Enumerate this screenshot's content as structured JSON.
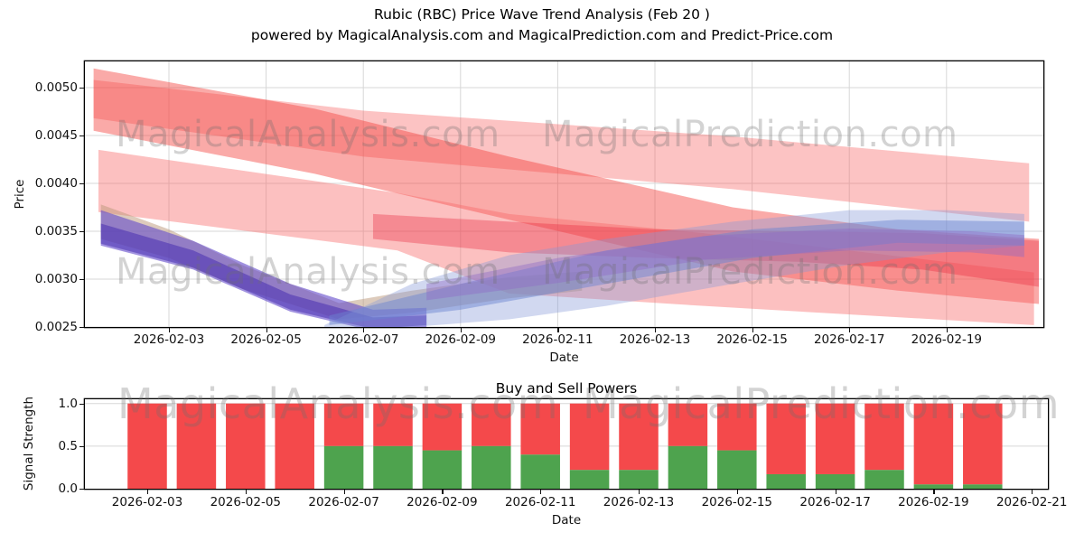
{
  "watermarks": {
    "analysis": "MagicalAnalysis.com",
    "prediction": "MagicalPrediction.com"
  },
  "chart_data": [
    {
      "type": "area",
      "title": "Rubic (RBC) Price Wave Trend Analysis (Feb 20 )",
      "subtitle": "powered by MagicalAnalysis.com and MagicalPrediction.com and Predict-Price.com",
      "xlabel": "Date",
      "ylabel": "Price",
      "x_unit": "day of February 2026",
      "xlim": [
        1.27,
        21.0
      ],
      "ylim": [
        0.0025,
        0.00527
      ],
      "grid": true,
      "legend": false,
      "xticks": {
        "values": [
          3,
          5,
          7,
          9,
          11,
          13,
          15,
          17,
          19
        ],
        "labels": [
          "2026-02-03",
          "2026-02-05",
          "2026-02-07",
          "2026-02-09",
          "2026-02-11",
          "2026-02-13",
          "2026-02-15",
          "2026-02-17",
          "2026-02-19"
        ]
      },
      "yticks": {
        "values": [
          0.0025,
          0.003,
          0.0035,
          0.004,
          0.0045,
          0.005
        ],
        "labels": [
          "0.0025",
          "0.0030",
          "0.0035",
          "0.0040",
          "0.0045",
          "0.0050"
        ]
      },
      "bands": [
        {
          "name": "forecast-band-pink-upper",
          "color": "rgba(246,97,97,0.38)",
          "x": [
            1.45,
            7.0,
            14.6,
            20.7
          ],
          "top": [
            0.00508,
            0.00476,
            0.00449,
            0.00421
          ],
          "bottom": [
            0.00468,
            0.00428,
            0.00394,
            0.0036
          ]
        },
        {
          "name": "forecast-band-red-steep",
          "color": "rgba(243,66,63,0.45)",
          "x": [
            1.45,
            6.0,
            10.0,
            14.6,
            18.0,
            20.9
          ],
          "top": [
            0.0052,
            0.00478,
            0.00428,
            0.00375,
            0.00352,
            0.00342
          ],
          "bottom": [
            0.00455,
            0.0041,
            0.00362,
            0.00308,
            0.00288,
            0.00274
          ]
        },
        {
          "name": "forecast-band-pink-lower",
          "color": "rgba(247,105,105,0.42)",
          "x": [
            1.55,
            7.7,
            10.0,
            14.0,
            20.8
          ],
          "top": [
            0.00435,
            0.0039,
            0.00368,
            0.00348,
            0.00307
          ],
          "bottom": [
            0.0037,
            0.0033,
            0.00285,
            0.00272,
            0.00252
          ]
        },
        {
          "name": "wave-band-tan",
          "color": "rgba(187,152,122,0.50)",
          "x": [
            1.6,
            3.0,
            4.5,
            6.5,
            8.0,
            10.0,
            11.5
          ],
          "top": [
            0.00378,
            0.00352,
            0.00315,
            0.00275,
            0.00288,
            0.00302,
            0.00308
          ],
          "bottom": [
            0.00342,
            0.00322,
            0.0029,
            0.00258,
            0.00265,
            0.0028,
            0.00288
          ]
        },
        {
          "name": "wave-band-purple",
          "color": "rgba(101,77,204,0.62)",
          "x": [
            1.6,
            3.5,
            5.5,
            7.2,
            8.3
          ],
          "top": [
            0.00372,
            0.0034,
            0.00295,
            0.00268,
            0.0027
          ],
          "bottom": [
            0.00335,
            0.0031,
            0.00266,
            0.00246,
            0.0025
          ]
        },
        {
          "name": "wave-band-purple-core",
          "color": "rgba(72,48,176,0.55)",
          "x": [
            1.6,
            3.5,
            5.5,
            7.2,
            8.3
          ],
          "top": [
            0.00358,
            0.0033,
            0.00284,
            0.0026,
            0.00262
          ],
          "bottom": [
            0.00337,
            0.00312,
            0.00268,
            0.00248,
            0.00252
          ]
        },
        {
          "name": "wave-band-red-core",
          "color": "rgba(232,38,60,0.35)",
          "x": [
            7.2,
            10.0,
            13.0,
            16.0,
            18.5,
            20.9
          ],
          "top": [
            0.00368,
            0.0036,
            0.00352,
            0.0035,
            0.00348,
            0.0034
          ],
          "bottom": [
            0.00342,
            0.00328,
            0.00322,
            0.00318,
            0.0031,
            0.00292
          ]
        },
        {
          "name": "wave-band-blue-fan",
          "color": "rgba(133,153,216,0.38)",
          "x": [
            6.2,
            8.0,
            10.0,
            12.0,
            14.6,
            17.0,
            19.0,
            20.6
          ],
          "top": [
            0.00252,
            0.00295,
            0.00325,
            0.00342,
            0.0036,
            0.00372,
            0.00372,
            0.00368
          ],
          "bottom": [
            0.0025,
            0.0025,
            0.00258,
            0.00272,
            0.00295,
            0.00315,
            0.00328,
            0.00335
          ]
        },
        {
          "name": "wave-band-blue-core",
          "color": "rgba(106,131,208,0.48)",
          "x": [
            6.3,
            9.0,
            12.0,
            15.0,
            18.0,
            20.6
          ],
          "top": [
            0.00262,
            0.00295,
            0.0033,
            0.00352,
            0.00362,
            0.0036
          ],
          "bottom": [
            0.00252,
            0.00268,
            0.00295,
            0.00322,
            0.00338,
            0.00335
          ]
        },
        {
          "name": "wave-band-violet-mid",
          "color": "rgba(142,104,198,0.42)",
          "x": [
            8.3,
            11.0,
            14.0,
            17.0,
            19.5,
            20.6
          ],
          "top": [
            0.00295,
            0.00322,
            0.00345,
            0.00353,
            0.0035,
            0.00346
          ],
          "bottom": [
            0.00278,
            0.00296,
            0.0032,
            0.0033,
            0.00328,
            0.00323
          ]
        }
      ]
    },
    {
      "type": "bar",
      "title": "Buy and Sell Powers",
      "xlabel": "Date",
      "ylabel": "Signal Strength",
      "stacked": true,
      "bar_total": 1.0,
      "bar_width_days": 0.8,
      "xlim": [
        1.71,
        21.64
      ],
      "ylim": [
        0,
        1.05
      ],
      "grid": "horizontal",
      "xticks": {
        "values": [
          3,
          5,
          7,
          9,
          11,
          13,
          15,
          17,
          19,
          21
        ],
        "labels": [
          "2026-02-03",
          "2026-02-05",
          "2026-02-07",
          "2026-02-09",
          "2026-02-11",
          "2026-02-13",
          "2026-02-15",
          "2026-02-17",
          "2026-02-19",
          "2026-02-21"
        ]
      },
      "yticks": {
        "values": [
          0,
          0.5,
          1.0
        ],
        "labels": [
          "0.0",
          "0.5",
          "1.0"
        ]
      },
      "categories": [
        "2026-02-03",
        "2026-02-04",
        "2026-02-05",
        "2026-02-06",
        "2026-02-07",
        "2026-02-08",
        "2026-02-09",
        "2026-02-10",
        "2026-02-11",
        "2026-02-12",
        "2026-02-13",
        "2026-02-14",
        "2026-02-15",
        "2026-02-16",
        "2026-02-17",
        "2026-02-18",
        "2026-02-19",
        "2026-02-20"
      ],
      "day_values": [
        3,
        4,
        5,
        6,
        7,
        8,
        9,
        10,
        11,
        12,
        13,
        14,
        15,
        16,
        17,
        18,
        19,
        20
      ],
      "series": [
        {
          "name": "Buy",
          "color": "#4ea34e",
          "values": [
            0,
            0,
            0,
            0,
            0.5,
            0.5,
            0.45,
            0.5,
            0.4,
            0.22,
            0.22,
            0.5,
            0.45,
            0.17,
            0.17,
            0.22,
            0.05,
            0.05
          ]
        },
        {
          "name": "Sell",
          "color": "#f4494b",
          "values": [
            1,
            1,
            1,
            1,
            0.5,
            0.5,
            0.55,
            0.5,
            0.6,
            0.78,
            0.78,
            0.5,
            0.55,
            0.83,
            0.83,
            0.78,
            0.95,
            0.95
          ]
        }
      ]
    }
  ]
}
